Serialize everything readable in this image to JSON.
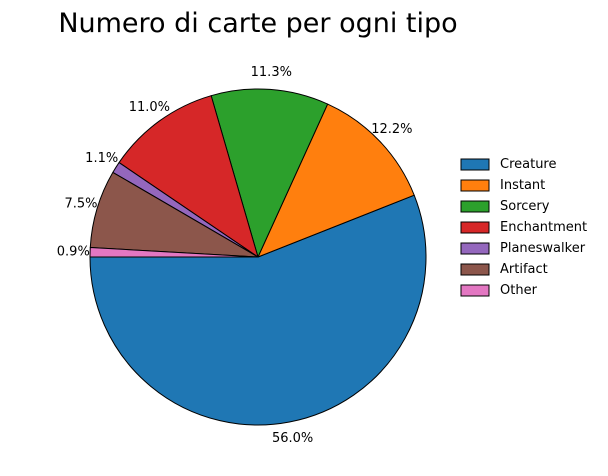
{
  "chart_data": {
    "type": "pie",
    "title": "Numero di carte per ogni tipo",
    "start_angle_deg": 180,
    "direction": "counterclockwise",
    "legend_position": "right",
    "slices": [
      {
        "label": "Creature",
        "value": 56.0,
        "pct_label": "56.0%",
        "color": "#1f77b4"
      },
      {
        "label": "Instant",
        "value": 12.2,
        "pct_label": "12.2%",
        "color": "#ff7f0e"
      },
      {
        "label": "Sorcery",
        "value": 11.3,
        "pct_label": "11.3%",
        "color": "#2ca02c"
      },
      {
        "label": "Enchantment",
        "value": 11.0,
        "pct_label": "11.0%",
        "color": "#d62728"
      },
      {
        "label": "Planeswalker",
        "value": 1.1,
        "pct_label": "1.1%",
        "color": "#9467bd"
      },
      {
        "label": "Artifact",
        "value": 7.5,
        "pct_label": "7.5%",
        "color": "#8c564b"
      },
      {
        "label": "Other",
        "value": 0.9,
        "pct_label": "0.9%",
        "color": "#e377c2"
      }
    ]
  }
}
